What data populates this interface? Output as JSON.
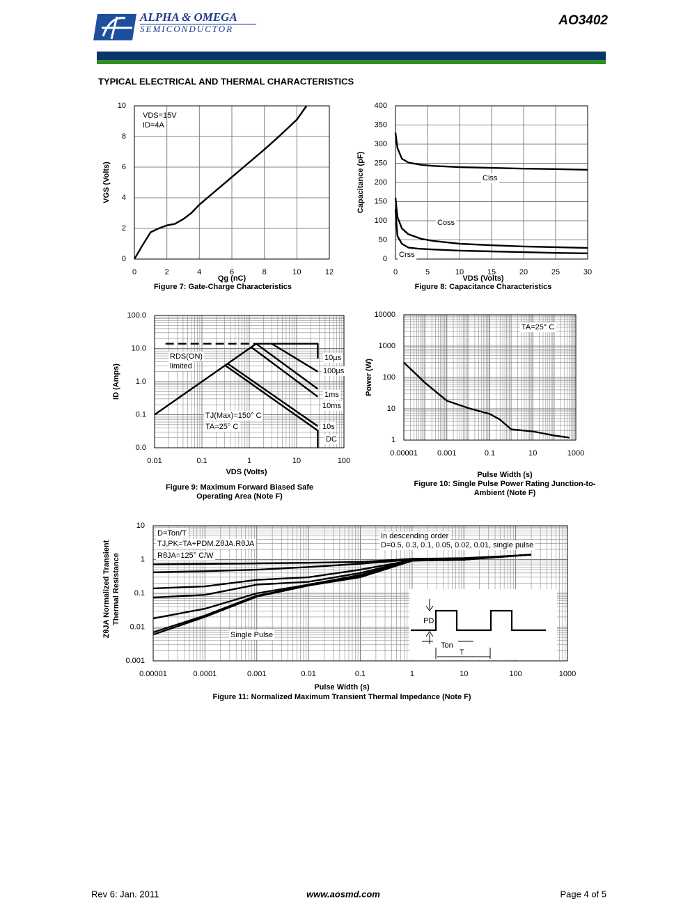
{
  "header": {
    "company": "ALPHA & OMEGA",
    "division": "SEMICONDUCTOR",
    "part": "AO3402"
  },
  "section_title": "TYPICAL ELECTRICAL AND THERMAL CHARACTERISTICS",
  "chart_data": [
    {
      "type": "line",
      "xlabel": "Qg (nC)",
      "ylabel": "VGS (Volts)",
      "caption": [
        "Figure 7: Gate-Charge Characteristics"
      ],
      "xlim": [
        0,
        12
      ],
      "ylim": [
        0,
        10
      ],
      "xticks": [
        0,
        2,
        4,
        6,
        8,
        10,
        12
      ],
      "yticks": [
        0,
        2,
        4,
        6,
        8,
        10
      ],
      "grid": true,
      "annotations": [
        "VDS=15V",
        "ID=4A"
      ],
      "series": [
        {
          "color": "#000000",
          "x": [
            0,
            0.5,
            1,
            1.5,
            2,
            2.5,
            3,
            3.5,
            4,
            5,
            6,
            7,
            8,
            9,
            10,
            10.6
          ],
          "values": [
            0,
            0.9,
            1.75,
            2.0,
            2.2,
            2.3,
            2.6,
            3.0,
            3.55,
            4.45,
            5.35,
            6.25,
            7.15,
            8.1,
            9.1,
            10
          ]
        }
      ]
    },
    {
      "type": "line",
      "xlabel": "VDS (Volts)",
      "ylabel": "Capacitance (pF)",
      "caption": [
        "Figure 8: Capacitance Characteristics"
      ],
      "xlim": [
        0,
        30
      ],
      "ylim": [
        0,
        400
      ],
      "xticks": [
        0,
        5,
        10,
        15,
        20,
        25,
        30
      ],
      "yticks": [
        0,
        50,
        100,
        150,
        200,
        250,
        300,
        350,
        400
      ],
      "grid": true,
      "series": [
        {
          "name": "Ciss",
          "color": "#000000",
          "x": [
            0,
            0.3,
            1,
            2,
            4,
            6,
            10,
            15,
            20,
            25,
            30
          ],
          "values": [
            330,
            290,
            262,
            252,
            246,
            243,
            240,
            238,
            236,
            235,
            233
          ]
        },
        {
          "name": "Coss",
          "color": "#000000",
          "x": [
            0,
            0.3,
            1,
            2,
            4,
            6,
            10,
            15,
            20,
            25,
            30
          ],
          "values": [
            160,
            110,
            80,
            65,
            53,
            47,
            40,
            36,
            33,
            31,
            29
          ]
        },
        {
          "name": "Crss",
          "color": "#000000",
          "x": [
            0,
            0.3,
            1,
            2,
            3.5,
            6,
            10,
            15,
            20,
            25,
            30
          ],
          "values": [
            130,
            60,
            40,
            30,
            27,
            25,
            22,
            20,
            18,
            16,
            15
          ]
        }
      ]
    },
    {
      "type": "line",
      "xlabel": "VDS (Volts)",
      "ylabel": "ID (Amps)",
      "caption": [
        "Figure 9: Maximum Forward Biased Safe",
        "Operating Area (Note F)"
      ],
      "xscale": "log",
      "yscale": "log",
      "minor_grid": true,
      "grid": true,
      "xlim": [
        0.01,
        100
      ],
      "ylim": [
        0.01,
        100
      ],
      "xticks": [
        0.01,
        0.1,
        1,
        10,
        100
      ],
      "yticks": [
        {
          "value": 0.01,
          "label": "0.0"
        },
        0.1,
        {
          "value": 1,
          "label": "1.0"
        },
        {
          "value": 10,
          "label": "10.0"
        },
        {
          "value": 100,
          "label": "100.0"
        }
      ],
      "annotations": [
        "RDS(ON)",
        "limited",
        "TJ(Max)=150° C",
        "TA=25° C"
      ],
      "series": [
        {
          "color": "#000000",
          "x": [
            0.01,
            1.4
          ],
          "values": [
            0.1,
            14
          ]
        },
        {
          "color": "#000000",
          "dash": true,
          "x": [
            0.017,
            1.4
          ],
          "values": [
            14,
            14
          ]
        },
        {
          "name": "10µs",
          "color": "#000000",
          "x": [
            1.4,
            28,
            28
          ],
          "values": [
            14,
            14,
            5
          ]
        },
        {
          "name": "100µs",
          "color": "#000000",
          "x": [
            3,
            28
          ],
          "values": [
            14,
            2
          ]
        },
        {
          "name": "1ms",
          "color": "#000000",
          "x": [
            1.4,
            28
          ],
          "values": [
            14,
            0.6
          ]
        },
        {
          "name": "10ms",
          "color": "#000000",
          "x": [
            1.1,
            28
          ],
          "values": [
            11,
            0.35
          ]
        },
        {
          "name": "10s",
          "color": "#000000",
          "x": [
            0.35,
            28
          ],
          "values": [
            3.5,
            0.045
          ]
        },
        {
          "name": "DC",
          "color": "#000000",
          "x": [
            0.3,
            28,
            28
          ],
          "values": [
            3.2,
            0.033,
            0.01
          ]
        }
      ]
    },
    {
      "type": "line",
      "xlabel": "Pulse Width (s)",
      "ylabel": "Power (W)",
      "caption": [
        "Figure 10: Single Pulse Power Rating Junction-to-",
        "Ambient (Note F)"
      ],
      "xscale": "log",
      "yscale": "log",
      "minor_grid": true,
      "grid": true,
      "xlim": [
        1e-05,
        1000
      ],
      "ylim": [
        1,
        10000
      ],
      "xticks": [
        1e-05,
        0.001,
        0.1,
        10,
        1000
      ],
      "yticks": [
        1,
        10,
        100,
        1000,
        10000
      ],
      "annotations": [
        "TA=25° C"
      ],
      "series": [
        {
          "color": "#000000",
          "x": [
            1e-05,
            0.0001,
            0.001,
            0.01,
            0.1,
            0.3,
            1,
            10,
            100,
            500
          ],
          "values": [
            300,
            66,
            18,
            10.5,
            6.8,
            4.5,
            2.2,
            1.9,
            1.4,
            1.2
          ]
        }
      ]
    },
    {
      "type": "line",
      "xlabel": "Pulse Width (s)",
      "ylabel": [
        "ZθJA Normalized Transient",
        "Thermal Resistance"
      ],
      "caption": [
        "Figure 11: Normalized Maximum Transient Thermal Impedance (Note F)"
      ],
      "xscale": "log",
      "yscale": "log",
      "minor_grid": true,
      "grid": true,
      "xlim": [
        1e-05,
        1000
      ],
      "ylim": [
        0.001,
        10
      ],
      "xticks": [
        1e-05,
        0.0001,
        0.001,
        0.01,
        0.1,
        1,
        10,
        100,
        1000
      ],
      "yticks": [
        0.001,
        0.01,
        0.1,
        1,
        10
      ],
      "annotations": [
        "D=Ton/T",
        "TJ,PK=TA+PDM.ZθJA.RθJA",
        "RθJA=125° C/W",
        "In descending order",
        "D=0.5, 0.3, 0.1, 0.05, 0.02, 0.01, single pulse",
        "Single Pulse"
      ],
      "inset_labels": [
        "PD",
        "Ton",
        "T"
      ],
      "series": [
        {
          "color": "#000000",
          "x": [
            1e-05,
            0.0001,
            0.001,
            0.01,
            0.1,
            1,
            10,
            100,
            200
          ],
          "values": [
            0.72,
            0.74,
            0.77,
            0.8,
            0.85,
            1.05,
            1.1,
            1.3,
            1.4
          ]
        },
        {
          "color": "#000000",
          "x": [
            1e-05,
            0.0001,
            0.001,
            0.01,
            0.1,
            1,
            10,
            100,
            200
          ],
          "values": [
            0.42,
            0.45,
            0.5,
            0.6,
            0.75,
            1.0,
            1.05,
            1.3,
            1.4
          ]
        },
        {
          "color": "#000000",
          "x": [
            1e-05,
            0.0001,
            0.001,
            0.01,
            0.1,
            1,
            10,
            100,
            200
          ],
          "values": [
            0.14,
            0.16,
            0.25,
            0.3,
            0.5,
            0.95,
            1.0,
            1.3,
            1.4
          ]
        },
        {
          "color": "#000000",
          "x": [
            1e-05,
            0.0001,
            0.001,
            0.01,
            0.1,
            1,
            10,
            100,
            200
          ],
          "values": [
            0.075,
            0.09,
            0.18,
            0.22,
            0.4,
            0.95,
            1.0,
            1.3,
            1.4
          ]
        },
        {
          "color": "#000000",
          "x": [
            1e-05,
            0.0001,
            0.001,
            0.01,
            0.1,
            1,
            10,
            100,
            200
          ],
          "values": [
            0.018,
            0.035,
            0.1,
            0.18,
            0.35,
            0.95,
            1.0,
            1.3,
            1.4
          ]
        },
        {
          "color": "#000000",
          "x": [
            1e-05,
            0.0001,
            0.001,
            0.01,
            0.1,
            1,
            10,
            100,
            200
          ],
          "values": [
            0.007,
            0.022,
            0.085,
            0.17,
            0.32,
            0.93,
            1.0,
            1.3,
            1.4
          ]
        },
        {
          "color": "#000000",
          "x": [
            1e-05,
            0.0001,
            0.001,
            0.01,
            0.1,
            1,
            10,
            100,
            200
          ],
          "values": [
            0.006,
            0.02,
            0.08,
            0.17,
            0.3,
            0.92,
            1.0,
            1.3,
            1.4
          ]
        }
      ]
    }
  ],
  "footer": {
    "revision": "Rev 6: Jan. 2011",
    "website": "www.aosmd.com",
    "page": "Page 4 of 5"
  }
}
